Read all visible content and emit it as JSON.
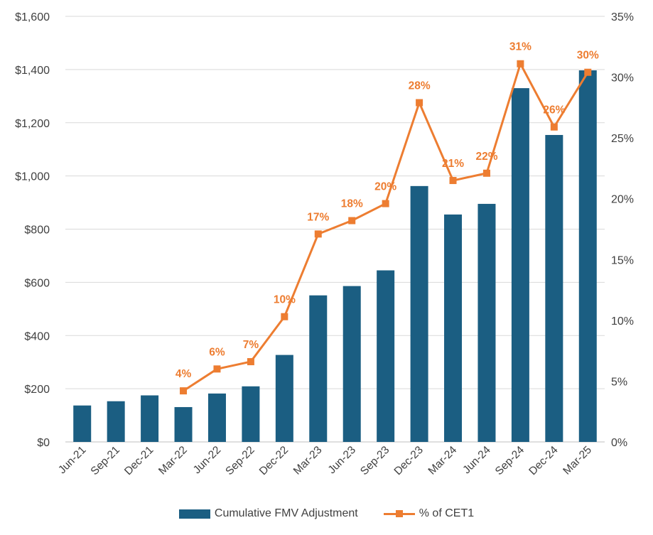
{
  "chart_data": {
    "type": "bar",
    "categories": [
      "Jun-21",
      "Sep-21",
      "Dec-21",
      "Mar-22",
      "Jun-22",
      "Sep-22",
      "Dec-22",
      "Mar-23",
      "Jun-23",
      "Sep-23",
      "Dec-23",
      "Mar-24",
      "Jun-24",
      "Sep-24",
      "Dec-24",
      "Mar-25"
    ],
    "series": [
      {
        "name": "Cumulative FMV Adjustment",
        "type": "bar",
        "axis": "left",
        "color": "#1B5E82",
        "values": [
          137,
          153,
          175,
          131,
          182,
          209,
          327,
          551,
          586,
          645,
          962,
          855,
          895,
          1330,
          1154,
          1397
        ]
      },
      {
        "name": "% of CET1",
        "type": "line",
        "axis": "right",
        "color": "#ED7D31",
        "marker": "square",
        "values": [
          null,
          null,
          null,
          4.2,
          6.0,
          6.6,
          10.3,
          17.1,
          18.2,
          19.6,
          27.9,
          21.5,
          22.1,
          31.1,
          25.9,
          30.4
        ],
        "data_labels": [
          "",
          "",
          "",
          "4%",
          "6%",
          "7%",
          "10%",
          "17%",
          "18%",
          "20%",
          "28%",
          "21%",
          "22%",
          "31%",
          "26%",
          "30%"
        ]
      }
    ],
    "y_left": {
      "ylim": [
        0,
        1600
      ],
      "ticks": [
        0,
        200,
        400,
        600,
        800,
        1000,
        1200,
        1400,
        1600
      ],
      "tick_labels": [
        "$0",
        "$200",
        "$400",
        "$600",
        "$800",
        "$1,000",
        "$1,200",
        "$1,400",
        "$1,600"
      ]
    },
    "y_right": {
      "ylim": [
        0,
        35
      ],
      "ticks": [
        0,
        5,
        10,
        15,
        20,
        25,
        30,
        35
      ],
      "tick_labels": [
        "0%",
        "5%",
        "10%",
        "15%",
        "20%",
        "25%",
        "30%",
        "35%"
      ]
    },
    "grid": true,
    "legend_position": "bottom",
    "title": "",
    "xlabel": "",
    "ylabel": ""
  },
  "legend": {
    "bar_label": "Cumulative FMV Adjustment",
    "line_label": "% of CET1"
  }
}
